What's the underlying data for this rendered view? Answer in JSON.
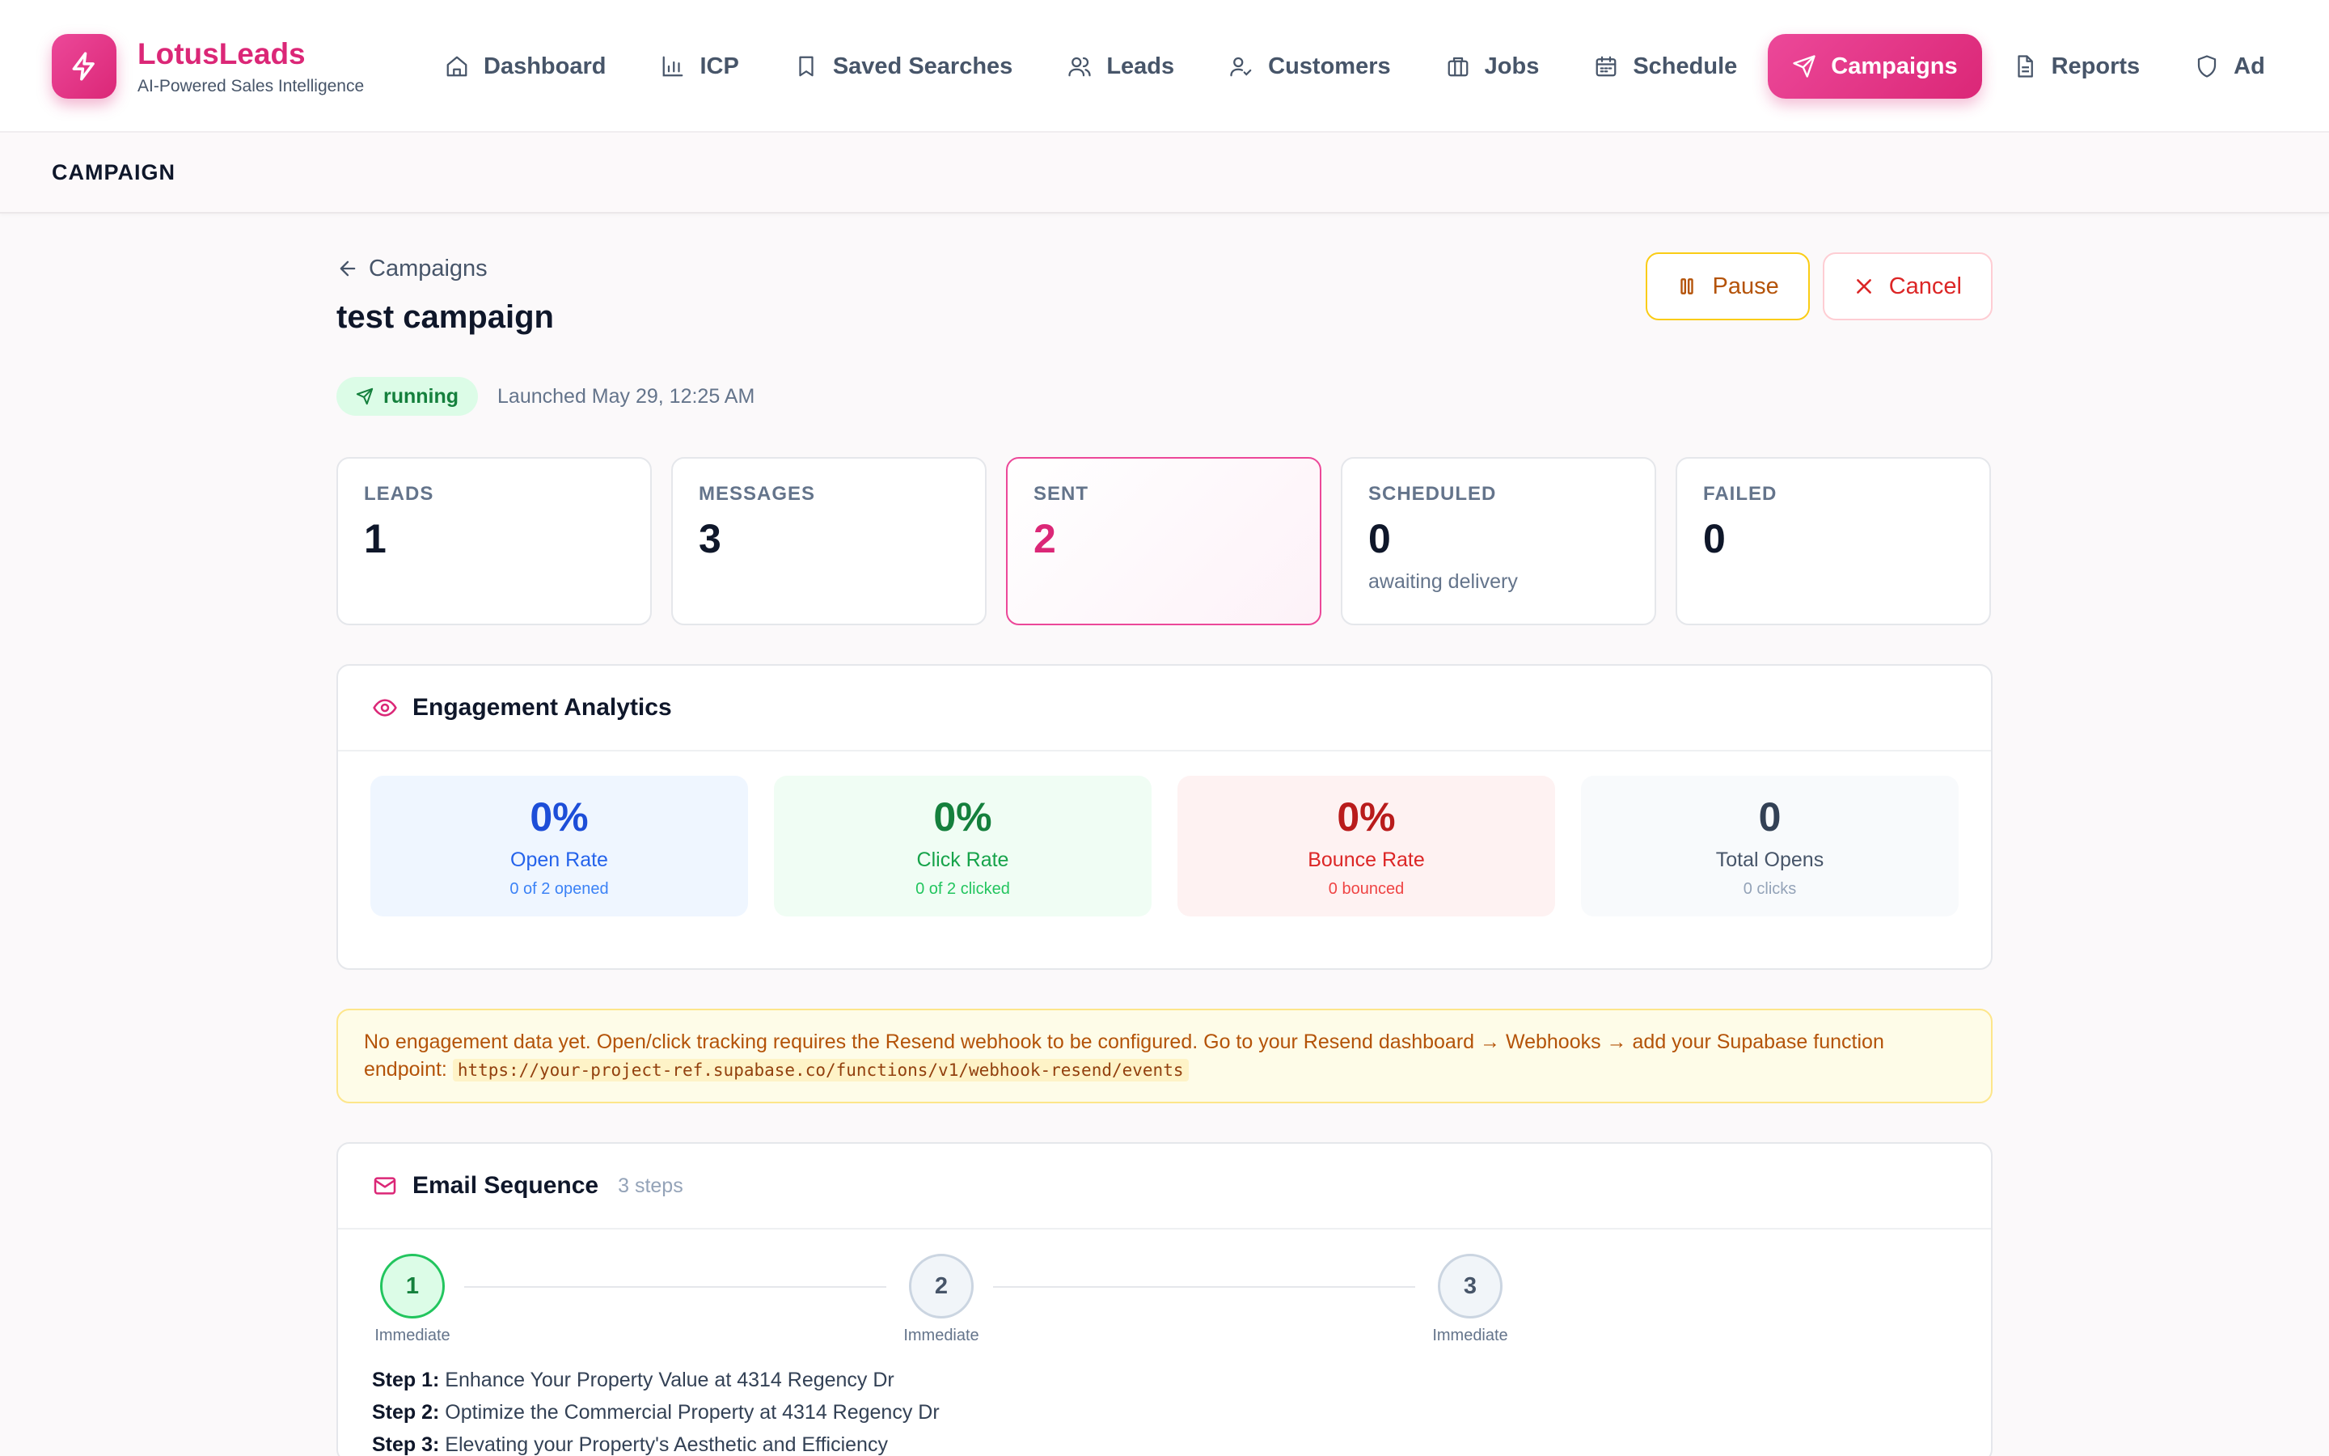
{
  "brand": {
    "name": "LotusLeads",
    "tagline": "AI-Powered Sales Intelligence"
  },
  "nav": [
    {
      "label": "Dashboard",
      "icon": "home-icon"
    },
    {
      "label": "ICP",
      "icon": "bar-chart-icon"
    },
    {
      "label": "Saved Searches",
      "icon": "bookmark-icon"
    },
    {
      "label": "Leads",
      "icon": "users-icon"
    },
    {
      "label": "Customers",
      "icon": "user-check-icon"
    },
    {
      "label": "Jobs",
      "icon": "briefcase-icon"
    },
    {
      "label": "Schedule",
      "icon": "calendar-icon"
    },
    {
      "label": "Campaigns",
      "icon": "send-icon",
      "active": true
    },
    {
      "label": "Reports",
      "icon": "file-text-icon"
    },
    {
      "label": "Ad",
      "icon": "shield-icon"
    }
  ],
  "subheader": {
    "title": "CAMPAIGN"
  },
  "campaign": {
    "back_label": "Campaigns",
    "title": "test campaign",
    "pause_label": "Pause",
    "cancel_label": "Cancel",
    "status": "running",
    "launched": "Launched May 29, 12:25 AM"
  },
  "stats": [
    {
      "label": "LEADS",
      "value": "1",
      "sub": ""
    },
    {
      "label": "MESSAGES",
      "value": "3",
      "sub": ""
    },
    {
      "label": "SENT",
      "value": "2",
      "sub": ""
    },
    {
      "label": "SCHEDULED",
      "value": "0",
      "sub": "awaiting delivery"
    },
    {
      "label": "FAILED",
      "value": "0",
      "sub": ""
    }
  ],
  "engagement": {
    "title": "Engagement Analytics",
    "metrics": [
      {
        "value": "0%",
        "label": "Open Rate",
        "sub": "0 of 2 opened"
      },
      {
        "value": "0%",
        "label": "Click Rate",
        "sub": "0 of 2 clicked"
      },
      {
        "value": "0%",
        "label": "Bounce Rate",
        "sub": "0 bounced"
      },
      {
        "value": "0",
        "label": "Total Opens",
        "sub": "0 clicks"
      }
    ]
  },
  "notice": {
    "text": "No engagement data yet. Open/click tracking requires the Resend webhook to be configured. Go to your Resend dashboard → Webhooks → add your Supabase function endpoint: ",
    "endpoint": "https://your-project-ref.supabase.co/functions/v1/webhook-resend/events"
  },
  "sequence": {
    "title": "Email Sequence",
    "count": "3 steps",
    "steps": [
      {
        "number": "1",
        "timing": "Immediate",
        "prefix": "Step 1:",
        "subject": " Enhance Your Property Value at 4314 Regency Dr"
      },
      {
        "number": "2",
        "timing": "Immediate",
        "prefix": "Step 2:",
        "subject": " Optimize the Commercial Property at 4314 Regency Dr"
      },
      {
        "number": "3",
        "timing": "Immediate",
        "prefix": "Step 3:",
        "subject": " Elevating your Property's Aesthetic and Efficiency"
      }
    ]
  },
  "colors": {
    "brand": "#db2777",
    "success": "#15803d",
    "warning": "#b45309",
    "danger": "#dc2626"
  }
}
